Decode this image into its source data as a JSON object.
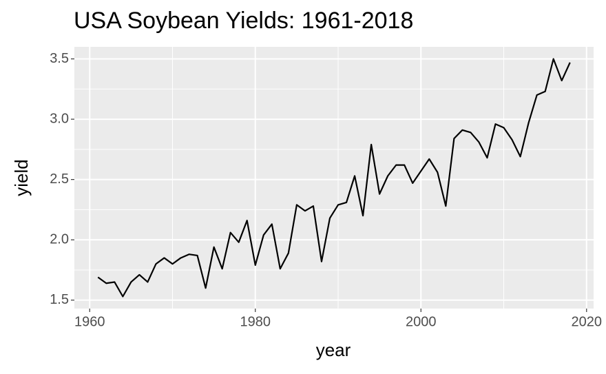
{
  "chart_data": {
    "type": "line",
    "title": "USA Soybean Yields: 1961-2018",
    "x_label": "year",
    "y_label": "yield",
    "x": [
      1961,
      1962,
      1963,
      1964,
      1965,
      1966,
      1967,
      1968,
      1969,
      1970,
      1971,
      1972,
      1973,
      1974,
      1975,
      1976,
      1977,
      1978,
      1979,
      1980,
      1981,
      1982,
      1983,
      1984,
      1985,
      1986,
      1987,
      1988,
      1989,
      1990,
      1991,
      1992,
      1993,
      1994,
      1995,
      1996,
      1997,
      1998,
      1999,
      2000,
      2001,
      2002,
      2003,
      2004,
      2005,
      2006,
      2007,
      2008,
      2009,
      2010,
      2011,
      2012,
      2013,
      2014,
      2015,
      2016,
      2017,
      2018
    ],
    "series": [
      {
        "name": "yield",
        "color": "#000000",
        "values": [
          1.69,
          1.64,
          1.65,
          1.53,
          1.65,
          1.71,
          1.65,
          1.8,
          1.85,
          1.8,
          1.85,
          1.88,
          1.87,
          1.6,
          1.94,
          1.76,
          2.06,
          1.98,
          2.16,
          1.79,
          2.04,
          2.13,
          1.76,
          1.89,
          2.29,
          2.24,
          2.28,
          1.82,
          2.18,
          2.29,
          2.31,
          2.53,
          2.2,
          2.79,
          2.38,
          2.53,
          2.62,
          2.62,
          2.47,
          2.57,
          2.67,
          2.56,
          2.28,
          2.84,
          2.91,
          2.89,
          2.81,
          2.68,
          2.96,
          2.93,
          2.83,
          2.69,
          2.97,
          3.2,
          3.23,
          3.5,
          3.32,
          3.47
        ]
      }
    ],
    "xlim": [
      1958.15,
      2020.85
    ],
    "xticks": [
      1960,
      1980,
      2000,
      2020
    ],
    "ylim": [
      1.43,
      3.6
    ],
    "yticks": [
      {
        "value": 1.5,
        "label": "1.5"
      },
      {
        "value": 2,
        "label": "2.0"
      },
      2.5,
      {
        "value": 3,
        "label": "3.0"
      },
      3.5
    ],
    "grid": true,
    "panel_color": "#ebebeb"
  }
}
